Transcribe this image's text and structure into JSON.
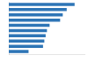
{
  "chart_data": {
    "type": "bar",
    "orientation": "horizontal",
    "categories": [
      null,
      null,
      null,
      null,
      null,
      null,
      null,
      null,
      null,
      null
    ],
    "values": [
      100,
      88,
      82,
      78,
      62,
      58,
      56,
      54,
      52,
      30
    ],
    "color": "#2e75b6",
    "xlim": [
      0,
      115
    ],
    "grid": false,
    "tick_labels": false
  }
}
